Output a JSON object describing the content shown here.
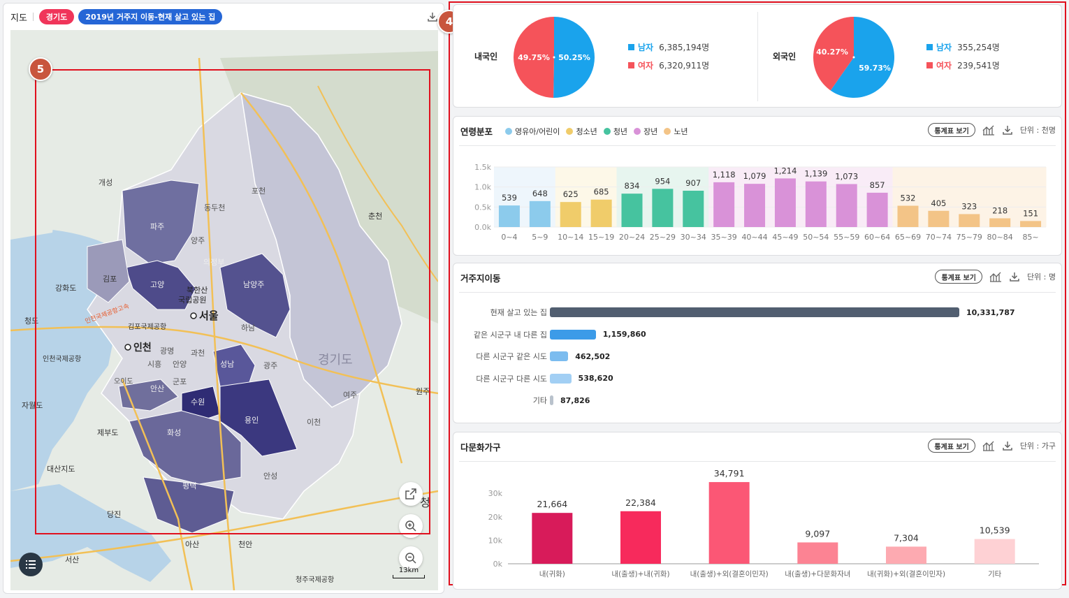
{
  "map_panel": {
    "title": "지도",
    "chip_region": "경기도",
    "chip_layer": "2019년 거주지 이동-현재 살고 있는 집",
    "scale_label": "13km",
    "place_labels": [
      "개성",
      "파주",
      "양주",
      "포천",
      "동두천",
      "춘천",
      "김포",
      "고양",
      "의정부",
      "남양주",
      "강화도",
      "서울",
      "북한산 국립공원",
      "인천국제공항고속",
      "김포국제공항",
      "인천",
      "하남",
      "광명",
      "과천",
      "성남",
      "광주",
      "경기도",
      "인천국제공항",
      "오이도",
      "시흥",
      "안산",
      "군포",
      "안양",
      "수원",
      "용인",
      "여주",
      "원주",
      "자월도",
      "제부도",
      "화성",
      "이천",
      "대산지도",
      "평택",
      "안성",
      "당진",
      "아산",
      "천안",
      "서산",
      "청주국제공항",
      "청"
    ]
  },
  "markers": {
    "m4": "4",
    "m5": "5"
  },
  "population": {
    "domestic": {
      "label": "내국인",
      "male_label": "남자",
      "male_value": "6,385,194명",
      "female_label": "여자",
      "female_value": "6,320,911명",
      "male_pct": 50.25,
      "female_pct": 49.75,
      "male_pct_label": "50.25%",
      "female_pct_label": "49.75%"
    },
    "foreign": {
      "label": "외국인",
      "male_label": "남자",
      "male_value": "355,254명",
      "female_label": "여자",
      "female_value": "239,541명",
      "male_pct": 59.73,
      "female_pct": 40.27,
      "male_pct_label": "59.73%",
      "female_pct_label": "40.27%"
    },
    "colors": {
      "male": "#1aa3ec",
      "female": "#f5535a"
    }
  },
  "age": {
    "title": "연령분포",
    "stat_button": "통계표 보기",
    "unit": "단위 : 천명",
    "groups": [
      {
        "name": "영유아/어린이",
        "color": "#8ccbec",
        "bg": "#eef6fc"
      },
      {
        "name": "청소년",
        "color": "#f0cc6a",
        "bg": "#fdf8e8"
      },
      {
        "name": "청년",
        "color": "#46c39f",
        "bg": "#e7f5ef"
      },
      {
        "name": "장년",
        "color": "#d992d8",
        "bg": "#f9ecf7"
      },
      {
        "name": "노년",
        "color": "#f3c487",
        "bg": "#fdf3e6"
      }
    ]
  },
  "migration": {
    "title": "거주지이동",
    "stat_button": "통계표 보기",
    "unit": "단위 : 명",
    "rows": [
      {
        "label": "현재 살고 있는 집",
        "value": 10331787,
        "text": "10,331,787",
        "color": "#515e70"
      },
      {
        "label": "같은 시군구 내 다른 집",
        "value": 1159860,
        "text": "1,159,860",
        "color": "#3c9be8"
      },
      {
        "label": "다른 시군구 같은 시도",
        "value": 462502,
        "text": "462,502",
        "color": "#7bbcef"
      },
      {
        "label": "다른 시군구 다른 시도",
        "value": 538620,
        "text": "538,620",
        "color": "#a2cff4"
      },
      {
        "label": "기타",
        "value": 87826,
        "text": "87,826",
        "color": "#b9c2cc"
      }
    ]
  },
  "multicultural": {
    "title": "다문화가구",
    "stat_button": "통계표 보기",
    "unit": "단위 : 가구"
  },
  "chart_data": [
    {
      "type": "bar",
      "title": "연령분포",
      "categories": [
        "0~4",
        "5~9",
        "10~14",
        "15~19",
        "20~24",
        "25~29",
        "30~34",
        "35~39",
        "40~44",
        "45~49",
        "50~54",
        "55~59",
        "60~64",
        "65~69",
        "70~74",
        "75~79",
        "80~84",
        "85~"
      ],
      "values": [
        539,
        648,
        625,
        685,
        834,
        954,
        907,
        1118,
        1079,
        1214,
        1139,
        1073,
        857,
        532,
        405,
        323,
        218,
        151
      ],
      "labels": [
        "539",
        "648",
        "625",
        "685",
        "834",
        "954",
        "907",
        "1,118",
        "1,079",
        "1,214",
        "1,139",
        "1,073",
        "857",
        "532",
        "405",
        "323",
        "218",
        "151"
      ],
      "group_index": [
        0,
        0,
        1,
        1,
        2,
        2,
        2,
        3,
        3,
        3,
        3,
        3,
        3,
        4,
        4,
        4,
        4,
        4
      ],
      "yticks": [
        "0.0k",
        "0.5k",
        "1.0k",
        "1.5k"
      ],
      "ylim": [
        0,
        1500
      ]
    },
    {
      "type": "bar",
      "title": "거주지이동",
      "categories": [
        "현재 살고 있는 집",
        "같은 시군구 내 다른 집",
        "다른 시군구 같은 시도",
        "다른 시군구 다른 시도",
        "기타"
      ],
      "values": [
        10331787,
        1159860,
        462502,
        538620,
        87826
      ]
    },
    {
      "type": "bar",
      "title": "다문화가구",
      "categories": [
        "내(귀화)",
        "내(출생)+내(귀화)",
        "내(출생)+외(결혼이민자)",
        "내(출생)+다문화자녀",
        "내(귀화)+외(결혼이민자)",
        "기타"
      ],
      "values": [
        21664,
        22384,
        34791,
        9097,
        7304,
        10539
      ],
      "labels": [
        "21,664",
        "22,384",
        "34,791",
        "9,097",
        "7,304",
        "10,539"
      ],
      "colors": [
        "#d81b5a",
        "#f72a5c",
        "#fb5775",
        "#fc8393",
        "#fdaab1",
        "#fed1d4"
      ],
      "yticks": [
        "0k",
        "10k",
        "20k",
        "30k"
      ],
      "ylim": [
        0,
        36000
      ]
    }
  ]
}
